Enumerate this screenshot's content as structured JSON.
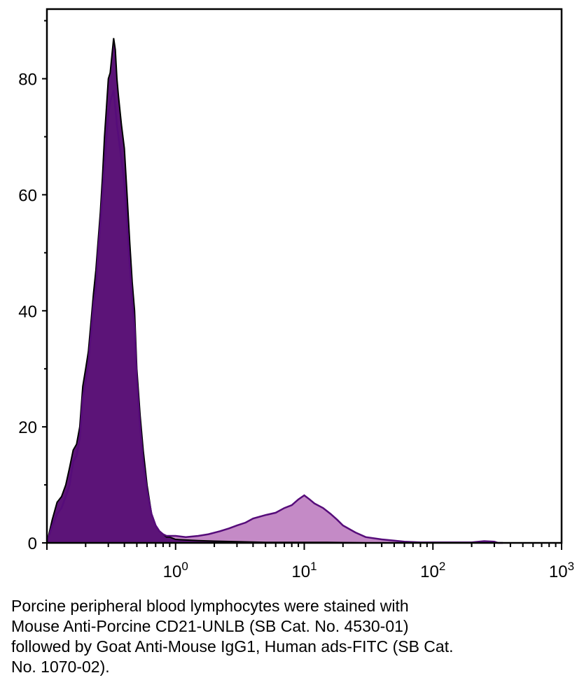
{
  "chart_data": {
    "type": "area",
    "title": "",
    "xlabel": "",
    "ylabel": "",
    "x_scale": "log",
    "xlim": [
      0.1,
      1000
    ],
    "ylim": [
      0,
      92
    ],
    "x_ticks": [
      {
        "value": 1,
        "base": "10",
        "exp": "0"
      },
      {
        "value": 10,
        "base": "10",
        "exp": "1"
      },
      {
        "value": 100,
        "base": "10",
        "exp": "2"
      },
      {
        "value": 1000,
        "base": "10",
        "exp": "3"
      }
    ],
    "y_ticks": [
      0,
      20,
      40,
      60,
      80
    ],
    "grid": false,
    "legend": "none",
    "colors": {
      "control_fill": "#5c1478",
      "control_line": "#000000",
      "stained_fill": "#c48ac6",
      "stained_line": "#560c7a"
    },
    "series": [
      {
        "x": [
          0.1,
          0.11,
          0.12,
          0.13,
          0.14,
          0.15,
          0.16,
          0.17,
          0.18,
          0.19,
          0.2,
          0.21,
          0.22,
          0.23,
          0.24,
          0.25,
          0.26,
          0.27,
          0.28,
          0.29,
          0.3,
          0.31,
          0.32,
          0.33,
          0.34,
          0.35,
          0.36,
          0.38,
          0.4,
          0.42,
          0.44,
          0.46,
          0.48,
          0.5,
          0.53,
          0.56,
          0.6,
          0.65,
          0.7,
          0.75,
          0.8,
          0.85,
          0.9,
          1.0,
          1.2,
          1.5,
          2.0,
          3.0,
          5.0,
          8.0,
          15.0,
          30.0
        ],
        "y": [
          0,
          4,
          7,
          8,
          10,
          13,
          16,
          17,
          20,
          27,
          30,
          33,
          38,
          43,
          47,
          52,
          57,
          63,
          70,
          75,
          80,
          81,
          84,
          87,
          85,
          80,
          77,
          72,
          68,
          60,
          52,
          45,
          40,
          30,
          22,
          16,
          10,
          5,
          3,
          2,
          1.5,
          1,
          1,
          0.6,
          0.5,
          0.4,
          0.3,
          0.2,
          0.1,
          0.1,
          0.1,
          0
        ]
      },
      {
        "x": [
          0.1,
          0.11,
          0.12,
          0.13,
          0.14,
          0.15,
          0.16,
          0.17,
          0.18,
          0.19,
          0.2,
          0.21,
          0.22,
          0.23,
          0.24,
          0.25,
          0.26,
          0.27,
          0.28,
          0.29,
          0.3,
          0.31,
          0.32,
          0.33,
          0.34,
          0.35,
          0.36,
          0.38,
          0.4,
          0.42,
          0.44,
          0.46,
          0.48,
          0.5,
          0.53,
          0.56,
          0.6,
          0.65,
          0.7,
          0.75,
          0.8,
          0.85,
          0.9,
          1.0,
          1.2,
          1.5,
          1.8,
          2.2,
          2.6,
          3.0,
          3.5,
          4.0,
          5.0,
          6.0,
          7.0,
          8.0,
          9.0,
          10.0,
          11.0,
          12.0,
          14.0,
          16.0,
          18.0,
          20.0,
          25.0,
          30.0,
          40.0,
          50.0,
          60.0,
          80.0,
          100.0,
          150.0,
          200.0,
          250.0,
          300.0,
          320.0,
          350.0
        ],
        "y": [
          0,
          3,
          5,
          6,
          8,
          10,
          14,
          15,
          18,
          25,
          28,
          31,
          36,
          41,
          44,
          50,
          55,
          60,
          65,
          70,
          74,
          76,
          77,
          78,
          75,
          72,
          70,
          66,
          62,
          55,
          48,
          42,
          37,
          28,
          20,
          14,
          9,
          5,
          3,
          2,
          1.5,
          1.2,
          1.2,
          1.2,
          1,
          1.2,
          1.5,
          2,
          2.5,
          3,
          3.5,
          4.2,
          4.8,
          5.2,
          6,
          6.5,
          7.5,
          8.2,
          7.5,
          6.8,
          6,
          5,
          4,
          3,
          1.8,
          1,
          0.6,
          0.4,
          0.2,
          0.1,
          0.1,
          0.1,
          0.1,
          0.3,
          0.2,
          0,
          0
        ]
      }
    ]
  },
  "caption": {
    "line1": "Porcine peripheral blood lymphocytes were stained with",
    "line2": "Mouse Anti-Porcine CD21-UNLB (SB Cat. No. 4530-01)",
    "line3": "followed by Goat Anti-Mouse IgG1, Human ads-FITC (SB Cat.",
    "line4": "No. 1070-02)."
  }
}
